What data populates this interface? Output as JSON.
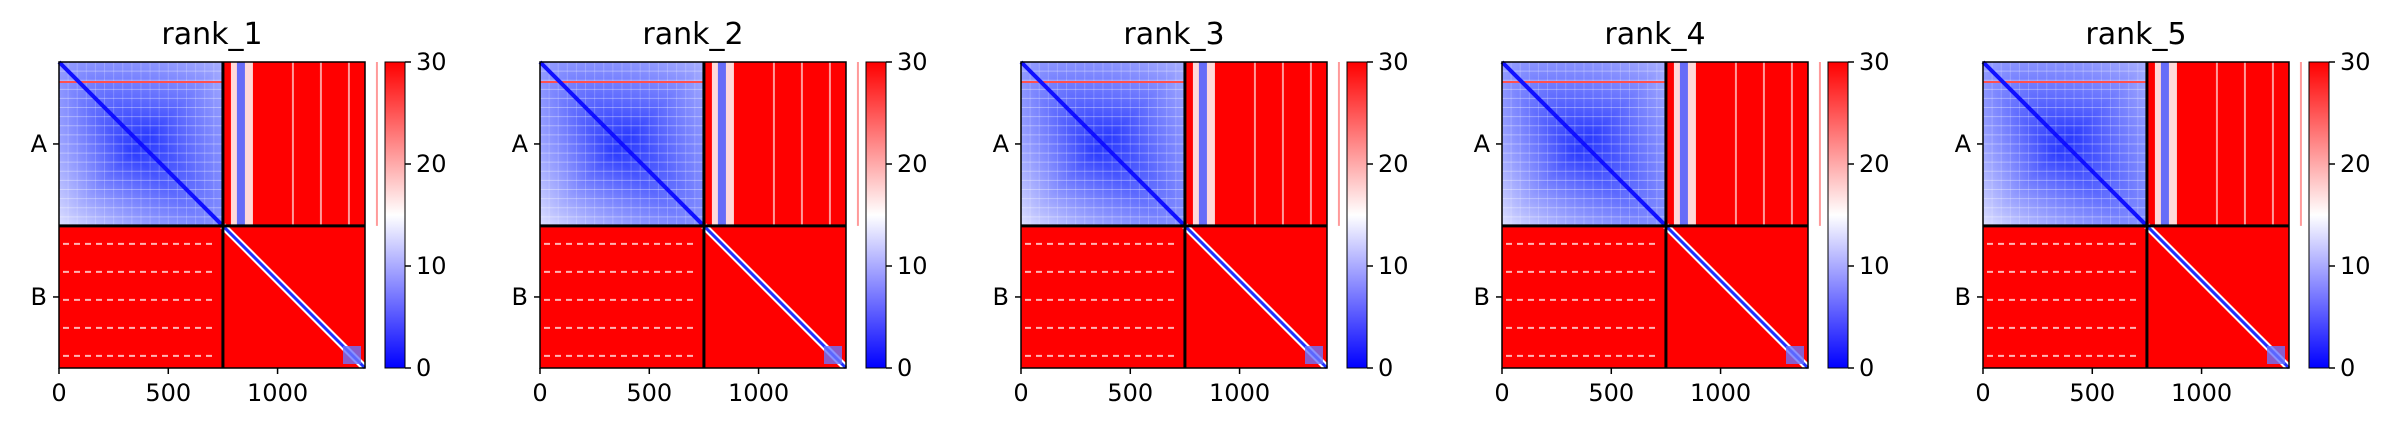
{
  "chart_data": [
    {
      "type": "heatmap",
      "title": "rank_1",
      "x_ticks": [
        "0",
        "500",
        "1000"
      ],
      "x_tick_values": [
        0,
        500,
        1000
      ],
      "xlim": [
        0,
        1400
      ],
      "y_tick_labels": [
        "A",
        "B"
      ],
      "chain_boundary": 750,
      "colorbar": {
        "ticks": [
          "0",
          "10",
          "20",
          "30"
        ],
        "range": [
          0,
          30
        ],
        "colormap": "bwr"
      },
      "notes": "Predicted aligned error map; chain A self-block mostly low (blue), inter-chain blocks high (red), thin diagonal in chain B"
    },
    {
      "type": "heatmap",
      "title": "rank_2",
      "x_ticks": [
        "0",
        "500",
        "1000"
      ],
      "x_tick_values": [
        0,
        500,
        1000
      ],
      "xlim": [
        0,
        1400
      ],
      "y_tick_labels": [
        "A",
        "B"
      ],
      "chain_boundary": 750,
      "colorbar": {
        "ticks": [
          "0",
          "10",
          "20",
          "30"
        ],
        "range": [
          0,
          30
        ],
        "colormap": "bwr"
      }
    },
    {
      "type": "heatmap",
      "title": "rank_3",
      "x_ticks": [
        "0",
        "500",
        "1000"
      ],
      "x_tick_values": [
        0,
        500,
        1000
      ],
      "xlim": [
        0,
        1400
      ],
      "y_tick_labels": [
        "A",
        "B"
      ],
      "chain_boundary": 750,
      "colorbar": {
        "ticks": [
          "0",
          "10",
          "20",
          "30"
        ],
        "range": [
          0,
          30
        ],
        "colormap": "bwr"
      }
    },
    {
      "type": "heatmap",
      "title": "rank_4",
      "x_ticks": [
        "0",
        "500",
        "1000"
      ],
      "x_tick_values": [
        0,
        500,
        1000
      ],
      "xlim": [
        0,
        1400
      ],
      "y_tick_labels": [
        "A",
        "B"
      ],
      "chain_boundary": 750,
      "colorbar": {
        "ticks": [
          "0",
          "10",
          "20",
          "30"
        ],
        "range": [
          0,
          30
        ],
        "colormap": "bwr"
      }
    },
    {
      "type": "heatmap",
      "title": "rank_5",
      "x_ticks": [
        "0",
        "500",
        "1000"
      ],
      "x_tick_values": [
        0,
        500,
        1000
      ],
      "xlim": [
        0,
        1400
      ],
      "y_tick_labels": [
        "A",
        "B"
      ],
      "chain_boundary": 750,
      "colorbar": {
        "ticks": [
          "0",
          "10",
          "20",
          "30"
        ],
        "range": [
          0,
          30
        ],
        "colormap": "bwr"
      }
    }
  ],
  "colors": {
    "low": "#0000ff",
    "mid": "#ffffff",
    "high": "#ff0000",
    "axis": "#000000"
  }
}
